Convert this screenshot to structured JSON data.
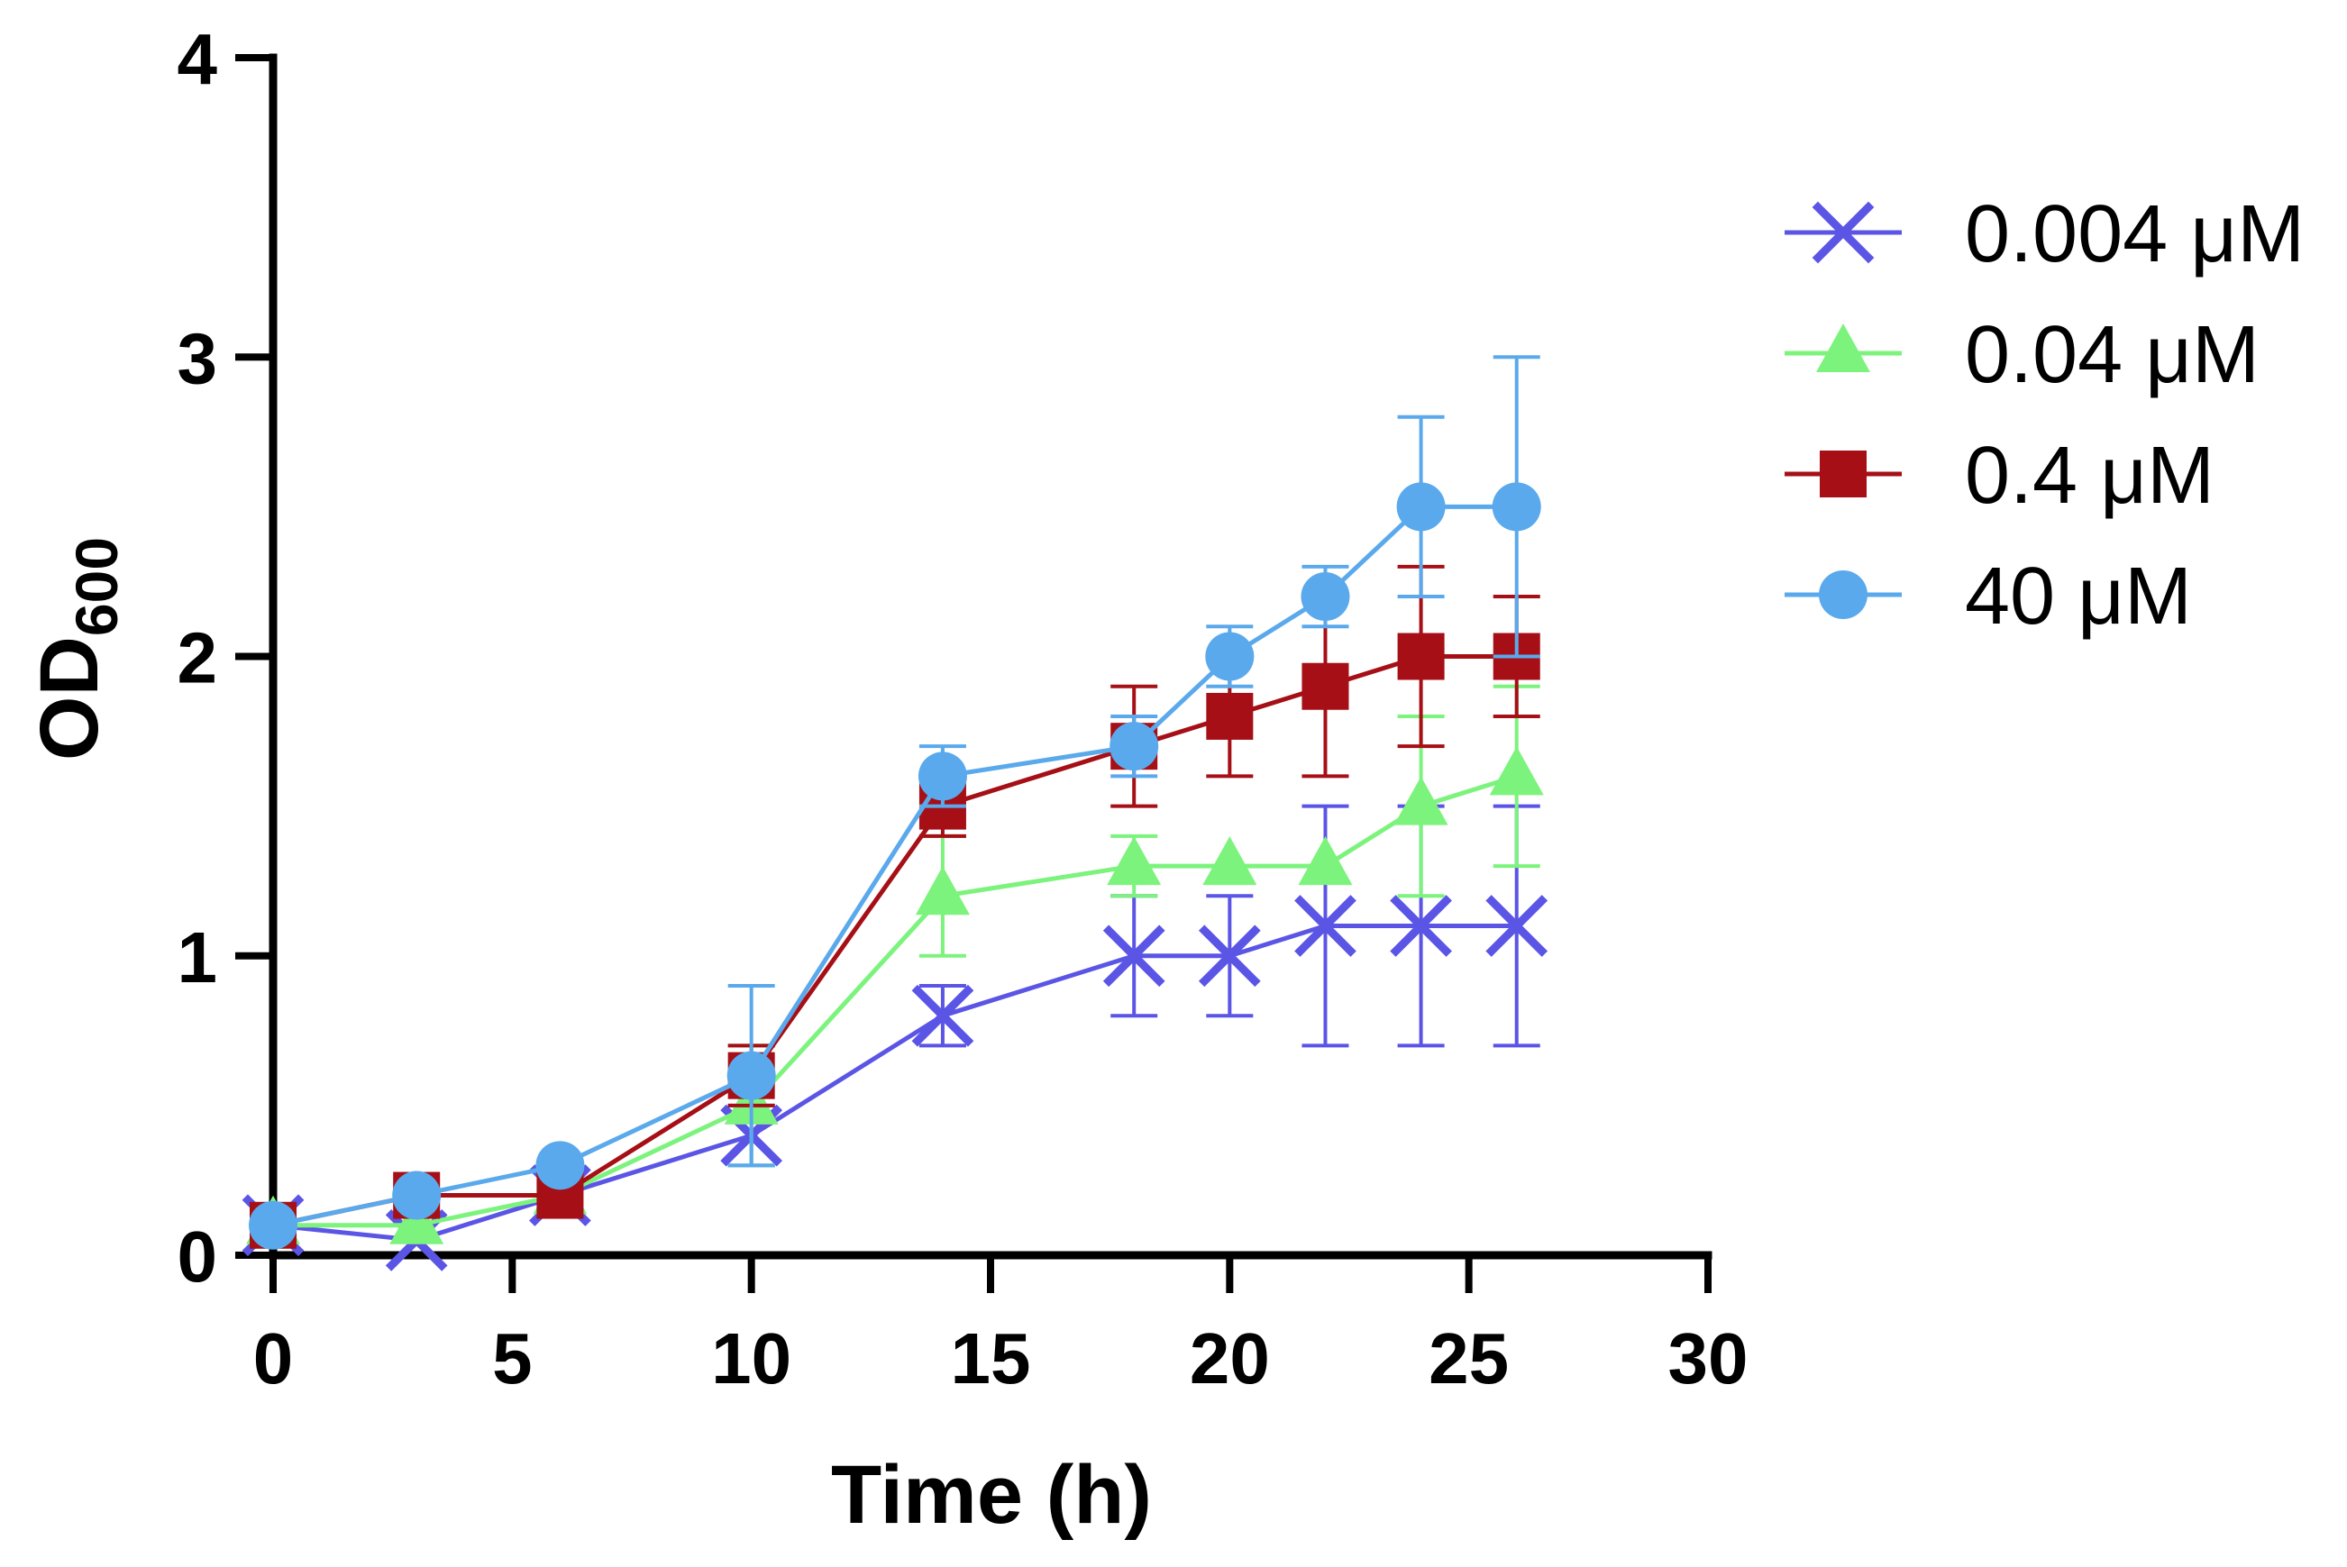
{
  "chart_data": {
    "type": "line",
    "xlabel": "Time (h)",
    "ylabel": {
      "main": "OD",
      "sub": "600"
    },
    "xlim": [
      0,
      30
    ],
    "ylim": [
      0,
      4
    ],
    "xticks": [
      "0",
      "5",
      "10",
      "15",
      "20",
      "25",
      "30"
    ],
    "yticks": [
      "0",
      "1",
      "2",
      "3",
      "4"
    ],
    "grid": false,
    "legend": "right",
    "x": [
      0,
      3,
      6,
      10,
      14,
      18,
      20,
      22,
      24,
      26
    ],
    "series": [
      {
        "name": "0.004 μM",
        "color": "#5b55e6",
        "marker": "x",
        "values": [
          0.1,
          0.05,
          0.2,
          0.4,
          0.8,
          1.0,
          1.0,
          1.1,
          1.1,
          1.1
        ],
        "errors": [
          0.0,
          0.0,
          0.0,
          0.1,
          0.1,
          0.2,
          0.2,
          0.4,
          0.4,
          0.4
        ]
      },
      {
        "name": "0.04 μM",
        "color": "#7cf37c",
        "marker": "triangle",
        "values": [
          0.1,
          0.1,
          0.2,
          0.5,
          1.2,
          1.3,
          1.3,
          1.3,
          1.5,
          1.6
        ],
        "errors": [
          0.0,
          0.0,
          0.0,
          0.2,
          0.2,
          0.1,
          0.0,
          0.0,
          0.3,
          0.3
        ]
      },
      {
        "name": "0.4 μM",
        "color": "#a50f15",
        "marker": "square",
        "values": [
          0.1,
          0.2,
          0.2,
          0.6,
          1.5,
          1.7,
          1.8,
          1.9,
          2.0,
          2.0
        ],
        "errors": [
          0.05,
          0.0,
          0.0,
          0.1,
          0.1,
          0.2,
          0.2,
          0.3,
          0.3,
          0.2
        ]
      },
      {
        "name": "40 μM",
        "color": "#5aa9ec",
        "marker": "circle",
        "values": [
          0.1,
          0.2,
          0.3,
          0.6,
          1.6,
          1.7,
          2.0,
          2.2,
          2.5,
          2.5
        ],
        "errors": [
          0.0,
          0.0,
          0.0,
          0.3,
          0.1,
          0.1,
          0.1,
          0.1,
          0.3,
          0.5
        ]
      }
    ]
  }
}
